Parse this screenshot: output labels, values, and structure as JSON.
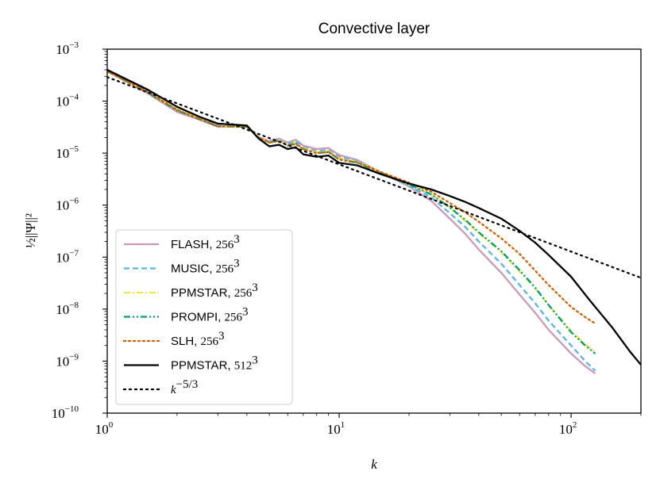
{
  "chart_data": {
    "type": "line",
    "title": "Convective layer",
    "xlabel": "k",
    "ylabel": "½||Ψ||²",
    "x_scale": "log",
    "y_scale": "log",
    "xlim": [
      1,
      200
    ],
    "ylim": [
      1e-10,
      0.001
    ],
    "grid": false,
    "legend_position": "lower-left",
    "x_ticks": [
      {
        "value": 1,
        "base": "10",
        "exp": "0"
      },
      {
        "value": 10,
        "base": "10",
        "exp": "1"
      },
      {
        "value": 100,
        "base": "10",
        "exp": "2"
      }
    ],
    "y_ticks": [
      {
        "value": 1e-10,
        "base": "10",
        "exp": "−10"
      },
      {
        "value": 1e-09,
        "base": "10",
        "exp": "−9"
      },
      {
        "value": 1e-08,
        "base": "10",
        "exp": "−8"
      },
      {
        "value": 1e-07,
        "base": "10",
        "exp": "−7"
      },
      {
        "value": 1e-06,
        "base": "10",
        "exp": "−6"
      },
      {
        "value": 1e-05,
        "base": "10",
        "exp": "−5"
      },
      {
        "value": 0.0001,
        "base": "10",
        "exp": "−4"
      },
      {
        "value": 0.001,
        "base": "10",
        "exp": "−3"
      }
    ],
    "series": [
      {
        "name": "FLASH, 256³",
        "label_text": "FLASH, ",
        "label_math": "256",
        "label_sup": "3",
        "color": "#cc99bb",
        "dash": "solid",
        "points": [
          [
            1,
            0.00038
          ],
          [
            1.5,
            0.00014
          ],
          [
            2,
            6.2e-05
          ],
          [
            2.5,
            4.4e-05
          ],
          [
            3,
            3.2e-05
          ],
          [
            4,
            3.3e-05
          ],
          [
            4.5,
            2e-05
          ],
          [
            5,
            1.7e-05
          ],
          [
            5.5,
            1.9e-05
          ],
          [
            6,
            1.6e-05
          ],
          [
            6.5,
            1.8e-05
          ],
          [
            7,
            1.4e-05
          ],
          [
            8,
            1.2e-05
          ],
          [
            9,
            1.25e-05
          ],
          [
            10,
            9.2e-06
          ],
          [
            12,
            7.4e-06
          ],
          [
            15,
            4.3e-06
          ],
          [
            20,
            2.3e-06
          ],
          [
            25,
            1.2e-06
          ],
          [
            30,
            5.5e-07
          ],
          [
            35,
            2.8e-07
          ],
          [
            40,
            1.4e-07
          ],
          [
            50,
            5e-08
          ],
          [
            60,
            1.9e-08
          ],
          [
            70,
            8.5e-09
          ],
          [
            80,
            4e-09
          ],
          [
            100,
            1.4e-09
          ],
          [
            115,
            8e-10
          ],
          [
            127,
            5.8e-10
          ]
        ]
      },
      {
        "name": "MUSIC, 256³",
        "label_text": "MUSIC, ",
        "label_math": "256",
        "label_sup": "3",
        "color": "#56b4e9",
        "dash": "dashed",
        "points": [
          [
            1,
            0.00038
          ],
          [
            1.5,
            0.00015
          ],
          [
            2,
            6.8e-05
          ],
          [
            2.5,
            4.6e-05
          ],
          [
            3,
            3.4e-05
          ],
          [
            4,
            3.3e-05
          ],
          [
            4.5,
            2e-05
          ],
          [
            5,
            1.6e-05
          ],
          [
            5.5,
            1.8e-05
          ],
          [
            6,
            1.5e-05
          ],
          [
            6.5,
            1.7e-05
          ],
          [
            7,
            1.3e-05
          ],
          [
            8,
            1.1e-05
          ],
          [
            9,
            1.15e-05
          ],
          [
            10,
            8.5e-06
          ],
          [
            12,
            7e-06
          ],
          [
            15,
            4.3e-06
          ],
          [
            20,
            2.4e-06
          ],
          [
            25,
            1.4e-06
          ],
          [
            30,
            7e-07
          ],
          [
            35,
            3.8e-07
          ],
          [
            40,
            2e-07
          ],
          [
            50,
            7.5e-08
          ],
          [
            60,
            2.9e-08
          ],
          [
            70,
            1.3e-08
          ],
          [
            80,
            6e-09
          ],
          [
            100,
            2e-09
          ],
          [
            115,
            1e-09
          ],
          [
            127,
            6.5e-10
          ]
        ]
      },
      {
        "name": "PPMSTAR, 256³",
        "label_text": "PPMSTAR, ",
        "label_math": "256",
        "label_sup": "3",
        "color": "#f0e442",
        "dash": "dashdot",
        "points": [
          [
            1,
            0.00037
          ],
          [
            1.5,
            0.00015
          ],
          [
            2,
            7e-05
          ],
          [
            2.5,
            4.6e-05
          ],
          [
            3,
            3.3e-05
          ],
          [
            4,
            3.2e-05
          ],
          [
            4.5,
            2e-05
          ],
          [
            5,
            1.6e-05
          ],
          [
            5.5,
            1.75e-05
          ],
          [
            6,
            1.45e-05
          ],
          [
            6.5,
            1.6e-05
          ],
          [
            7,
            1.25e-05
          ],
          [
            8,
            1.05e-05
          ],
          [
            9,
            1.1e-05
          ],
          [
            10,
            8e-06
          ],
          [
            12,
            6.8e-06
          ],
          [
            15,
            4.4e-06
          ],
          [
            20,
            2.5e-06
          ],
          [
            25,
            1.6e-06
          ],
          [
            30,
            9e-07
          ],
          [
            35,
            5e-07
          ],
          [
            40,
            2.9e-07
          ],
          [
            50,
            1.25e-07
          ],
          [
            60,
            5.3e-08
          ],
          [
            70,
            2.5e-08
          ],
          [
            80,
            1.2e-08
          ],
          [
            100,
            3.8e-09
          ],
          [
            115,
            2.1e-09
          ],
          [
            127,
            1.5e-09
          ]
        ]
      },
      {
        "name": "PROMPI, 256³",
        "label_text": "PROMPI, ",
        "label_math": "256",
        "label_sup": "3",
        "color": "#009e73",
        "dash": "dashdotdot",
        "points": [
          [
            1,
            0.00038
          ],
          [
            1.5,
            0.000145
          ],
          [
            2,
            6.6e-05
          ],
          [
            2.5,
            4.5e-05
          ],
          [
            3,
            3.3e-05
          ],
          [
            4,
            3.2e-05
          ],
          [
            4.5,
            2e-05
          ],
          [
            5,
            1.6e-05
          ],
          [
            5.5,
            1.75e-05
          ],
          [
            6,
            1.4e-05
          ],
          [
            6.5,
            1.55e-05
          ],
          [
            7,
            1.2e-05
          ],
          [
            8,
            1e-05
          ],
          [
            9,
            1.05e-05
          ],
          [
            10,
            7.5e-06
          ],
          [
            12,
            6.5e-06
          ],
          [
            15,
            4.2e-06
          ],
          [
            20,
            2.5e-06
          ],
          [
            25,
            1.6e-06
          ],
          [
            30,
            9e-07
          ],
          [
            35,
            5.2e-07
          ],
          [
            40,
            3e-07
          ],
          [
            50,
            1.3e-07
          ],
          [
            60,
            5.6e-08
          ],
          [
            70,
            2.6e-08
          ],
          [
            80,
            1.2e-08
          ],
          [
            100,
            3.6e-09
          ],
          [
            115,
            2e-09
          ],
          [
            127,
            1.4e-09
          ]
        ]
      },
      {
        "name": "SLH, 256³",
        "label_text": "SLH, ",
        "label_math": "256",
        "label_sup": "3",
        "color": "#d55e00",
        "dash": "dotted",
        "points": [
          [
            1,
            0.00037
          ],
          [
            1.5,
            0.00015
          ],
          [
            2,
            6.8e-05
          ],
          [
            2.5,
            4.5e-05
          ],
          [
            3,
            3.3e-05
          ],
          [
            4,
            3.2e-05
          ],
          [
            4.5,
            2e-05
          ],
          [
            5,
            1.6e-05
          ],
          [
            5.5,
            1.7e-05
          ],
          [
            6,
            1.4e-05
          ],
          [
            6.5,
            1.5e-05
          ],
          [
            7,
            1.2e-05
          ],
          [
            8,
            1e-05
          ],
          [
            9,
            1.05e-05
          ],
          [
            10,
            7.6e-06
          ],
          [
            12,
            6.6e-06
          ],
          [
            15,
            4.4e-06
          ],
          [
            20,
            2.7e-06
          ],
          [
            25,
            1.8e-06
          ],
          [
            30,
            1.1e-06
          ],
          [
            35,
            7.2e-07
          ],
          [
            40,
            4.8e-07
          ],
          [
            50,
            2.3e-07
          ],
          [
            60,
            1.15e-07
          ],
          [
            70,
            5.5e-08
          ],
          [
            80,
            2.9e-08
          ],
          [
            100,
            1.1e-08
          ],
          [
            115,
            7e-09
          ],
          [
            127,
            5.3e-09
          ]
        ]
      },
      {
        "name": "PPMSTAR, 512³",
        "label_text": "PPMSTAR, ",
        "label_math": "512",
        "label_sup": "3",
        "color": "#000000",
        "dash": "solid",
        "points": [
          [
            1,
            0.0004
          ],
          [
            1.5,
            0.000165
          ],
          [
            2,
            7.8e-05
          ],
          [
            2.5,
            5e-05
          ],
          [
            3,
            3.7e-05
          ],
          [
            4,
            3.4e-05
          ],
          [
            4.5,
            1.9e-05
          ],
          [
            5,
            1.35e-05
          ],
          [
            5.5,
            1.45e-05
          ],
          [
            6,
            1.2e-05
          ],
          [
            6.5,
            1.3e-05
          ],
          [
            7,
            9.5e-06
          ],
          [
            8,
            8.5e-06
          ],
          [
            9,
            9e-06
          ],
          [
            10,
            6.5e-06
          ],
          [
            12,
            5.8e-06
          ],
          [
            15,
            4e-06
          ],
          [
            20,
            2.6e-06
          ],
          [
            25,
            2e-06
          ],
          [
            30,
            1.5e-06
          ],
          [
            35,
            1.15e-06
          ],
          [
            40,
            8.8e-07
          ],
          [
            50,
            5.5e-07
          ],
          [
            60,
            3.2e-07
          ],
          [
            70,
            1.9e-07
          ],
          [
            80,
            1.1e-07
          ],
          [
            100,
            4.2e-08
          ],
          [
            120,
            1.5e-08
          ],
          [
            150,
            4.5e-09
          ],
          [
            180,
            1.5e-09
          ],
          [
            200,
            8.5e-10
          ]
        ]
      },
      {
        "name": "k^−5/3",
        "label_text": "",
        "label_math": "k",
        "label_sup": "−5/3",
        "color": "#000000",
        "dash": "dotted_black",
        "points": [
          [
            1,
            0.00029
          ],
          [
            200,
            4e-08
          ]
        ]
      }
    ]
  }
}
